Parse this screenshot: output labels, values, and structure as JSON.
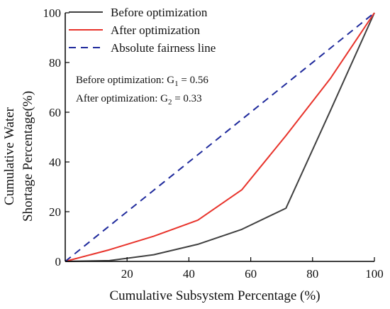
{
  "chart_data": {
    "type": "line",
    "title": "",
    "xlabel": "Cumulative Subsystem Percentage (%)",
    "ylabel_lines": [
      "Cumulative Water",
      "Shortage Percentage(%)"
    ],
    "xlim": [
      0,
      100
    ],
    "ylim": [
      0,
      100
    ],
    "x_ticks": [
      20,
      40,
      60,
      80,
      100
    ],
    "y_ticks": [
      0,
      20,
      40,
      60,
      80,
      100
    ],
    "grid": false,
    "legend_position": "top-left",
    "series": [
      {
        "name": "Before optimization",
        "color": "#404040",
        "dash": "solid",
        "x": [
          0,
          14.3,
          28.6,
          42.9,
          57.1,
          71.4,
          85.7,
          100
        ],
        "y": [
          0,
          0.3,
          2.7,
          6.9,
          12.9,
          21.4,
          60.5,
          100
        ]
      },
      {
        "name": "After optimization",
        "color": "#e8332b",
        "dash": "solid",
        "x": [
          0,
          14.3,
          28.6,
          42.9,
          57.1,
          71.4,
          85.7,
          100
        ],
        "y": [
          0,
          4.7,
          10.1,
          16.6,
          28.8,
          50.6,
          73.5,
          100
        ]
      },
      {
        "name": "Absolute fairness line",
        "color": "#1f2a9c",
        "dash": "dashed",
        "x": [
          0,
          100
        ],
        "y": [
          0,
          100
        ]
      }
    ],
    "annotations": [
      {
        "prefix": "Before optimization: G",
        "sub": "1",
        "suffix": " = 0.56"
      },
      {
        "prefix": "After optimization: G",
        "sub": "2",
        "suffix": " = 0.33"
      }
    ]
  }
}
